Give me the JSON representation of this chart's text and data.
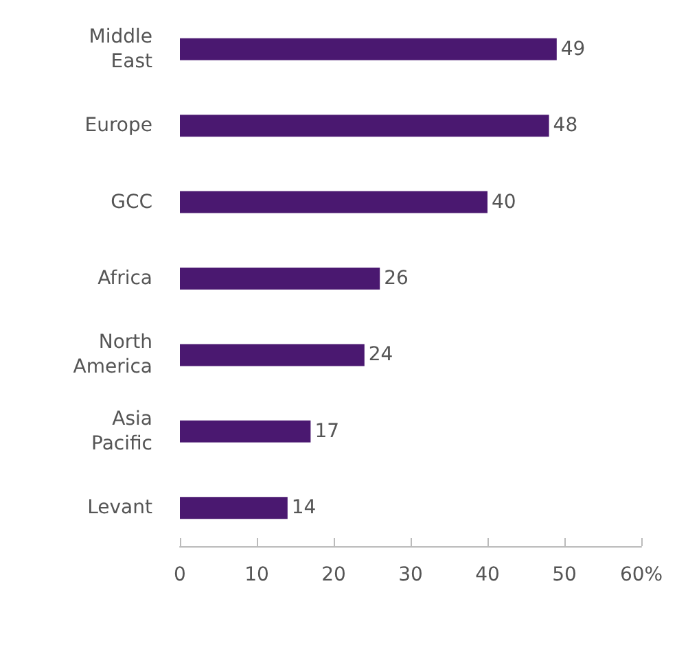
{
  "chart_data": {
    "type": "bar",
    "orientation": "horizontal",
    "categories": [
      "Middle\nEast",
      "Europe",
      "GCC",
      "Africa",
      "North\nAmerica",
      "Asia\nPacific",
      "Levant"
    ],
    "values": [
      49,
      48,
      40,
      26,
      24,
      17,
      14
    ],
    "color": "#4a1870",
    "data_labels": true,
    "xlim": [
      0,
      60
    ],
    "xticks": [
      0,
      10,
      20,
      30,
      40,
      50,
      {
        "value": 60,
        "label": "60%"
      }
    ],
    "grid": false
  }
}
